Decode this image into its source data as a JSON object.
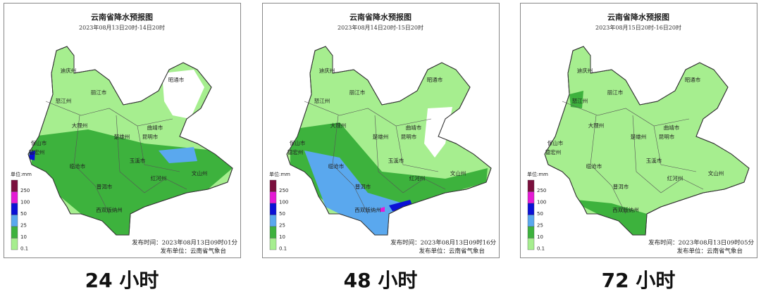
{
  "map_labels": [
    "迪庆州",
    "丽江市",
    "怒江州",
    "大理州",
    "楚雄州",
    "昆明市",
    "曲靖市",
    "昭通市",
    "保山市",
    "德宏州",
    "临沧市",
    "玉溪市",
    "红河州",
    "普洱市",
    "文山州",
    "西双版纳州"
  ],
  "legend_title": "单位:mm",
  "legend": [
    {
      "value": 250,
      "color": "#7a0f3d"
    },
    {
      "value": 100,
      "color": "#e51ad5"
    },
    {
      "value": 50,
      "color": "#0b10d6"
    },
    {
      "value": 25,
      "color": "#5aa8ee"
    },
    {
      "value": 10,
      "color": "#3db23d"
    },
    {
      "value": 0.1,
      "color": "#a6ee8f"
    }
  ],
  "panels": [
    {
      "title": "云南省降水预报图",
      "period": "2023年08月13日20时-14日20时",
      "publish_time": "发布时间：2023年08月13日09时01分",
      "publisher": "发布单位：云南省气象台",
      "caption": "24 小时"
    },
    {
      "title": "云南省降水预报图",
      "period": "2023年08月14日20时-15日20时",
      "publish_time": "发布时间：2023年08月13日09时16分",
      "publisher": "发布单位：云南省气象台",
      "caption": "48 小时"
    },
    {
      "title": "云南省降水预报图",
      "period": "2023年08月15日20时-16日20时",
      "publish_time": "发布时间：2023年08月13日09时05分",
      "publisher": "发布单位：云南省气象台",
      "caption": "72 小时"
    }
  ]
}
